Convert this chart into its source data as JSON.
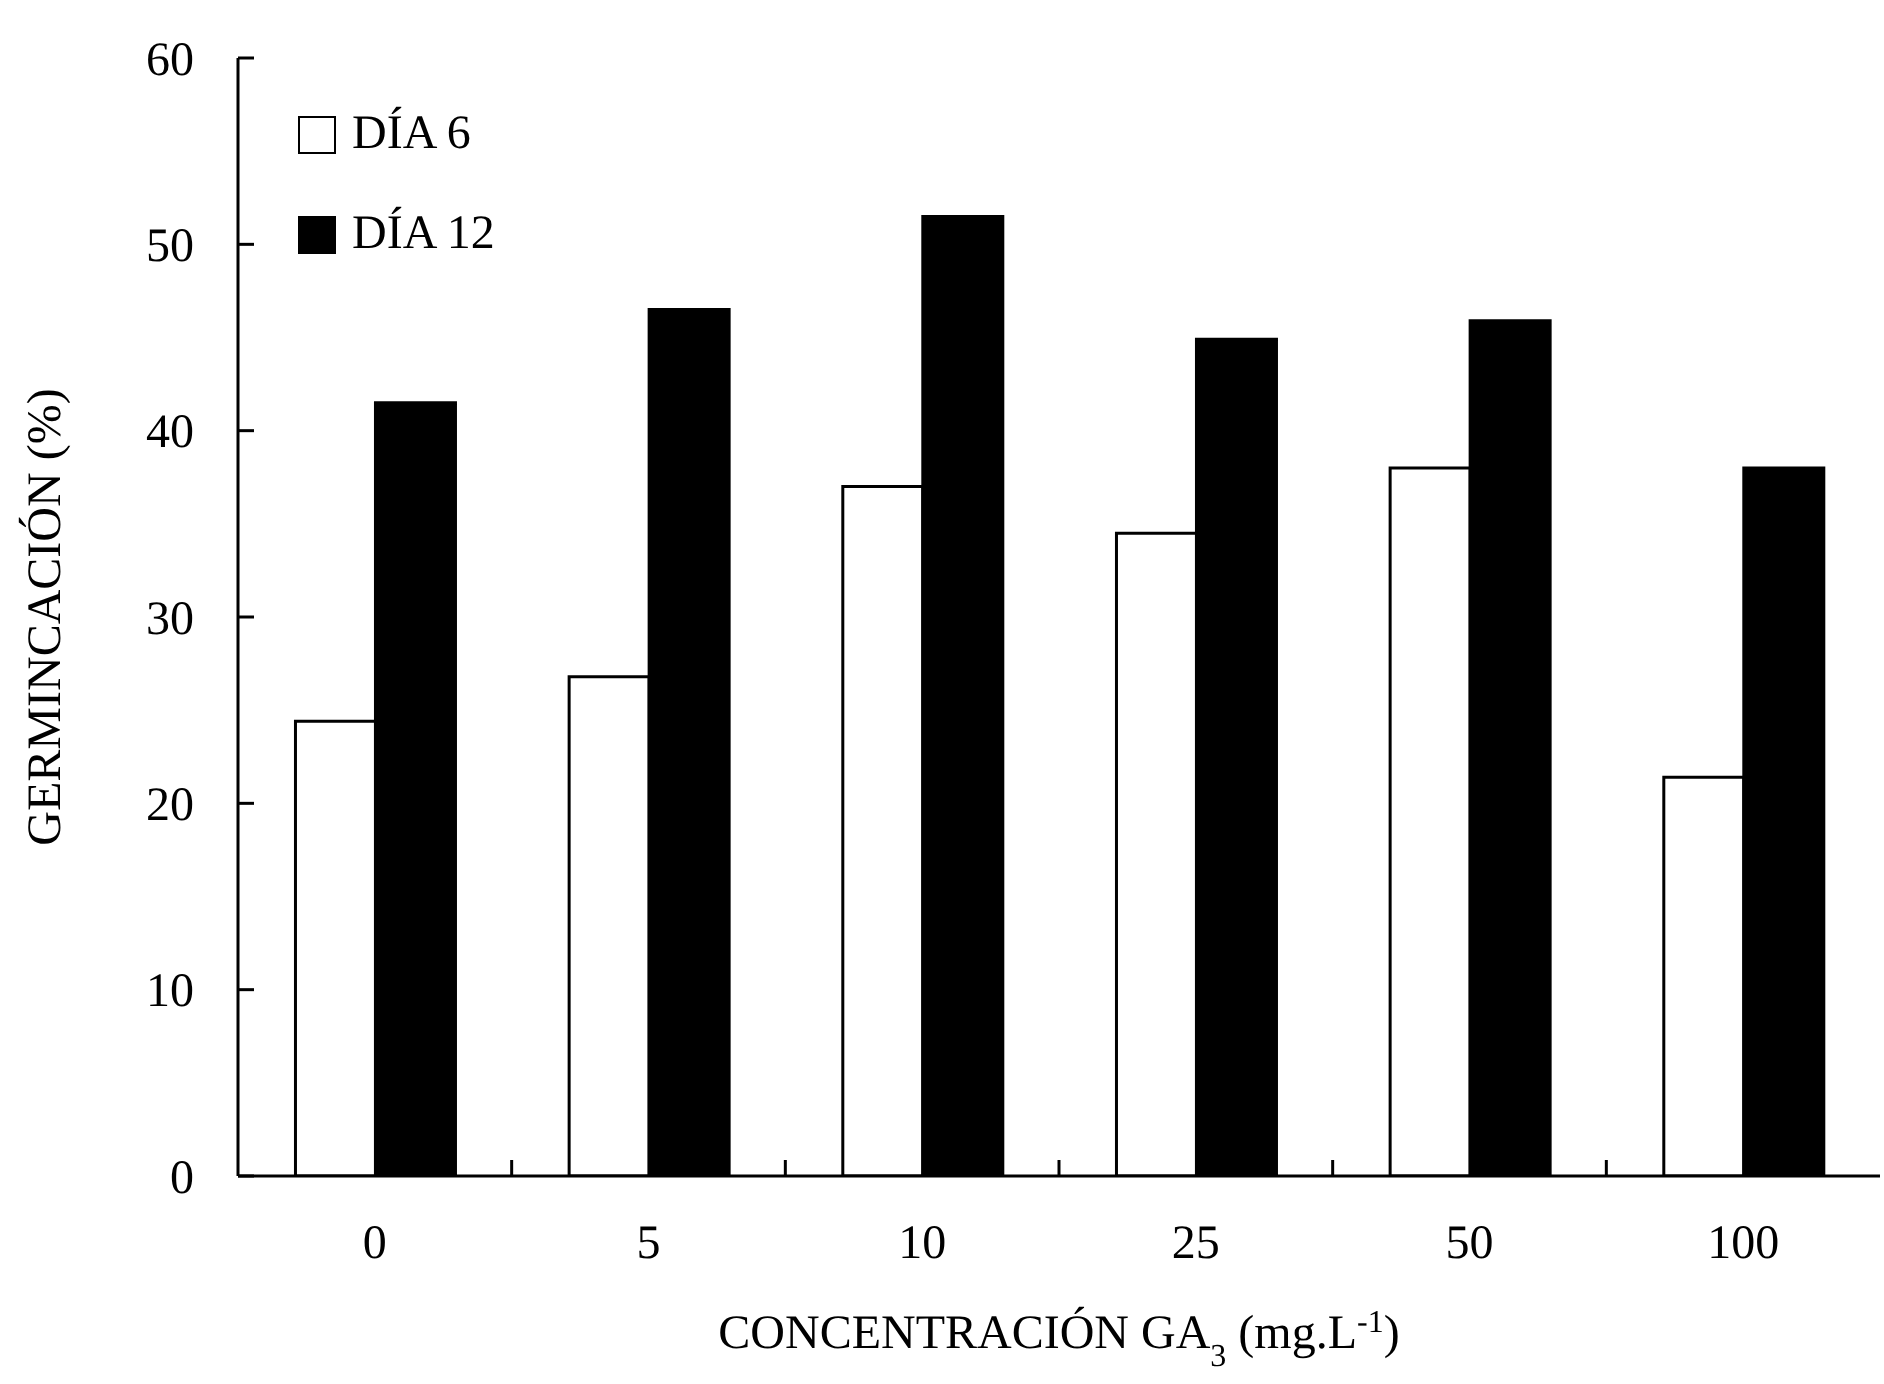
{
  "chart_data": {
    "type": "bar",
    "xlabel": "CONCENTRACIÓN GA$_{3}$ (mg.L$^{-1}$)",
    "ylabel": "GERMINCACIÓN (%)",
    "categories": [
      "0",
      "5",
      "10",
      "25",
      "50",
      "100"
    ],
    "series": [
      {
        "name": "DÍA 6",
        "color": "#ffffff",
        "values": [
          24.4,
          26.8,
          37.0,
          34.5,
          38.0,
          21.4
        ]
      },
      {
        "name": "DÍA 12",
        "color": "#000000",
        "values": [
          41.5,
          46.5,
          51.5,
          44.9,
          45.9,
          38.0
        ]
      }
    ],
    "ylim": [
      0,
      60
    ],
    "yticks": [
      0,
      10,
      20,
      30,
      40,
      50,
      60
    ],
    "grid": false,
    "legend": "top left"
  }
}
